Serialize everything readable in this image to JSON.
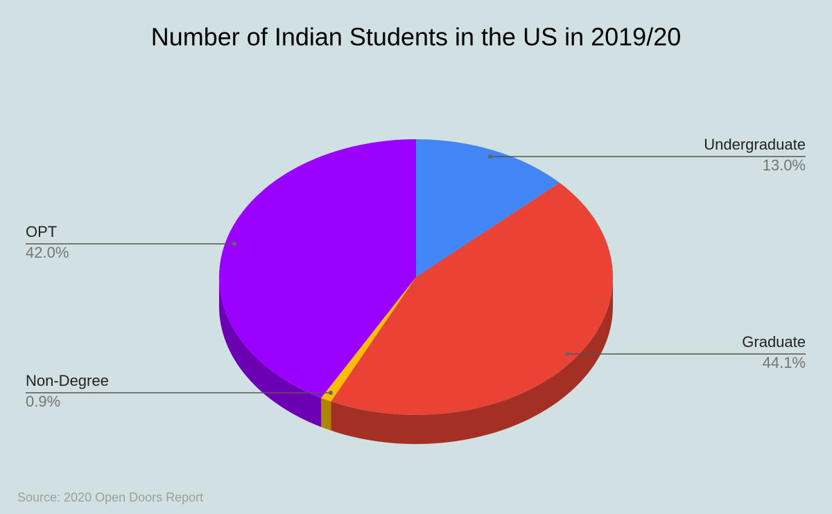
{
  "chart_data": {
    "type": "pie",
    "title": "Number of Indian Students in the US in 2019/20",
    "source": "Source: 2020 Open Doors Report",
    "categories": [
      "Undergraduate",
      "Graduate",
      "Non-Degree",
      "OPT"
    ],
    "values": [
      13.0,
      44.1,
      0.9,
      42.0
    ],
    "value_labels": [
      "13.0%",
      "44.1%",
      "0.9%",
      "42.0%"
    ],
    "colors": [
      "#4285f4",
      "#ea4335",
      "#fbbc04",
      "#9900ff"
    ]
  }
}
